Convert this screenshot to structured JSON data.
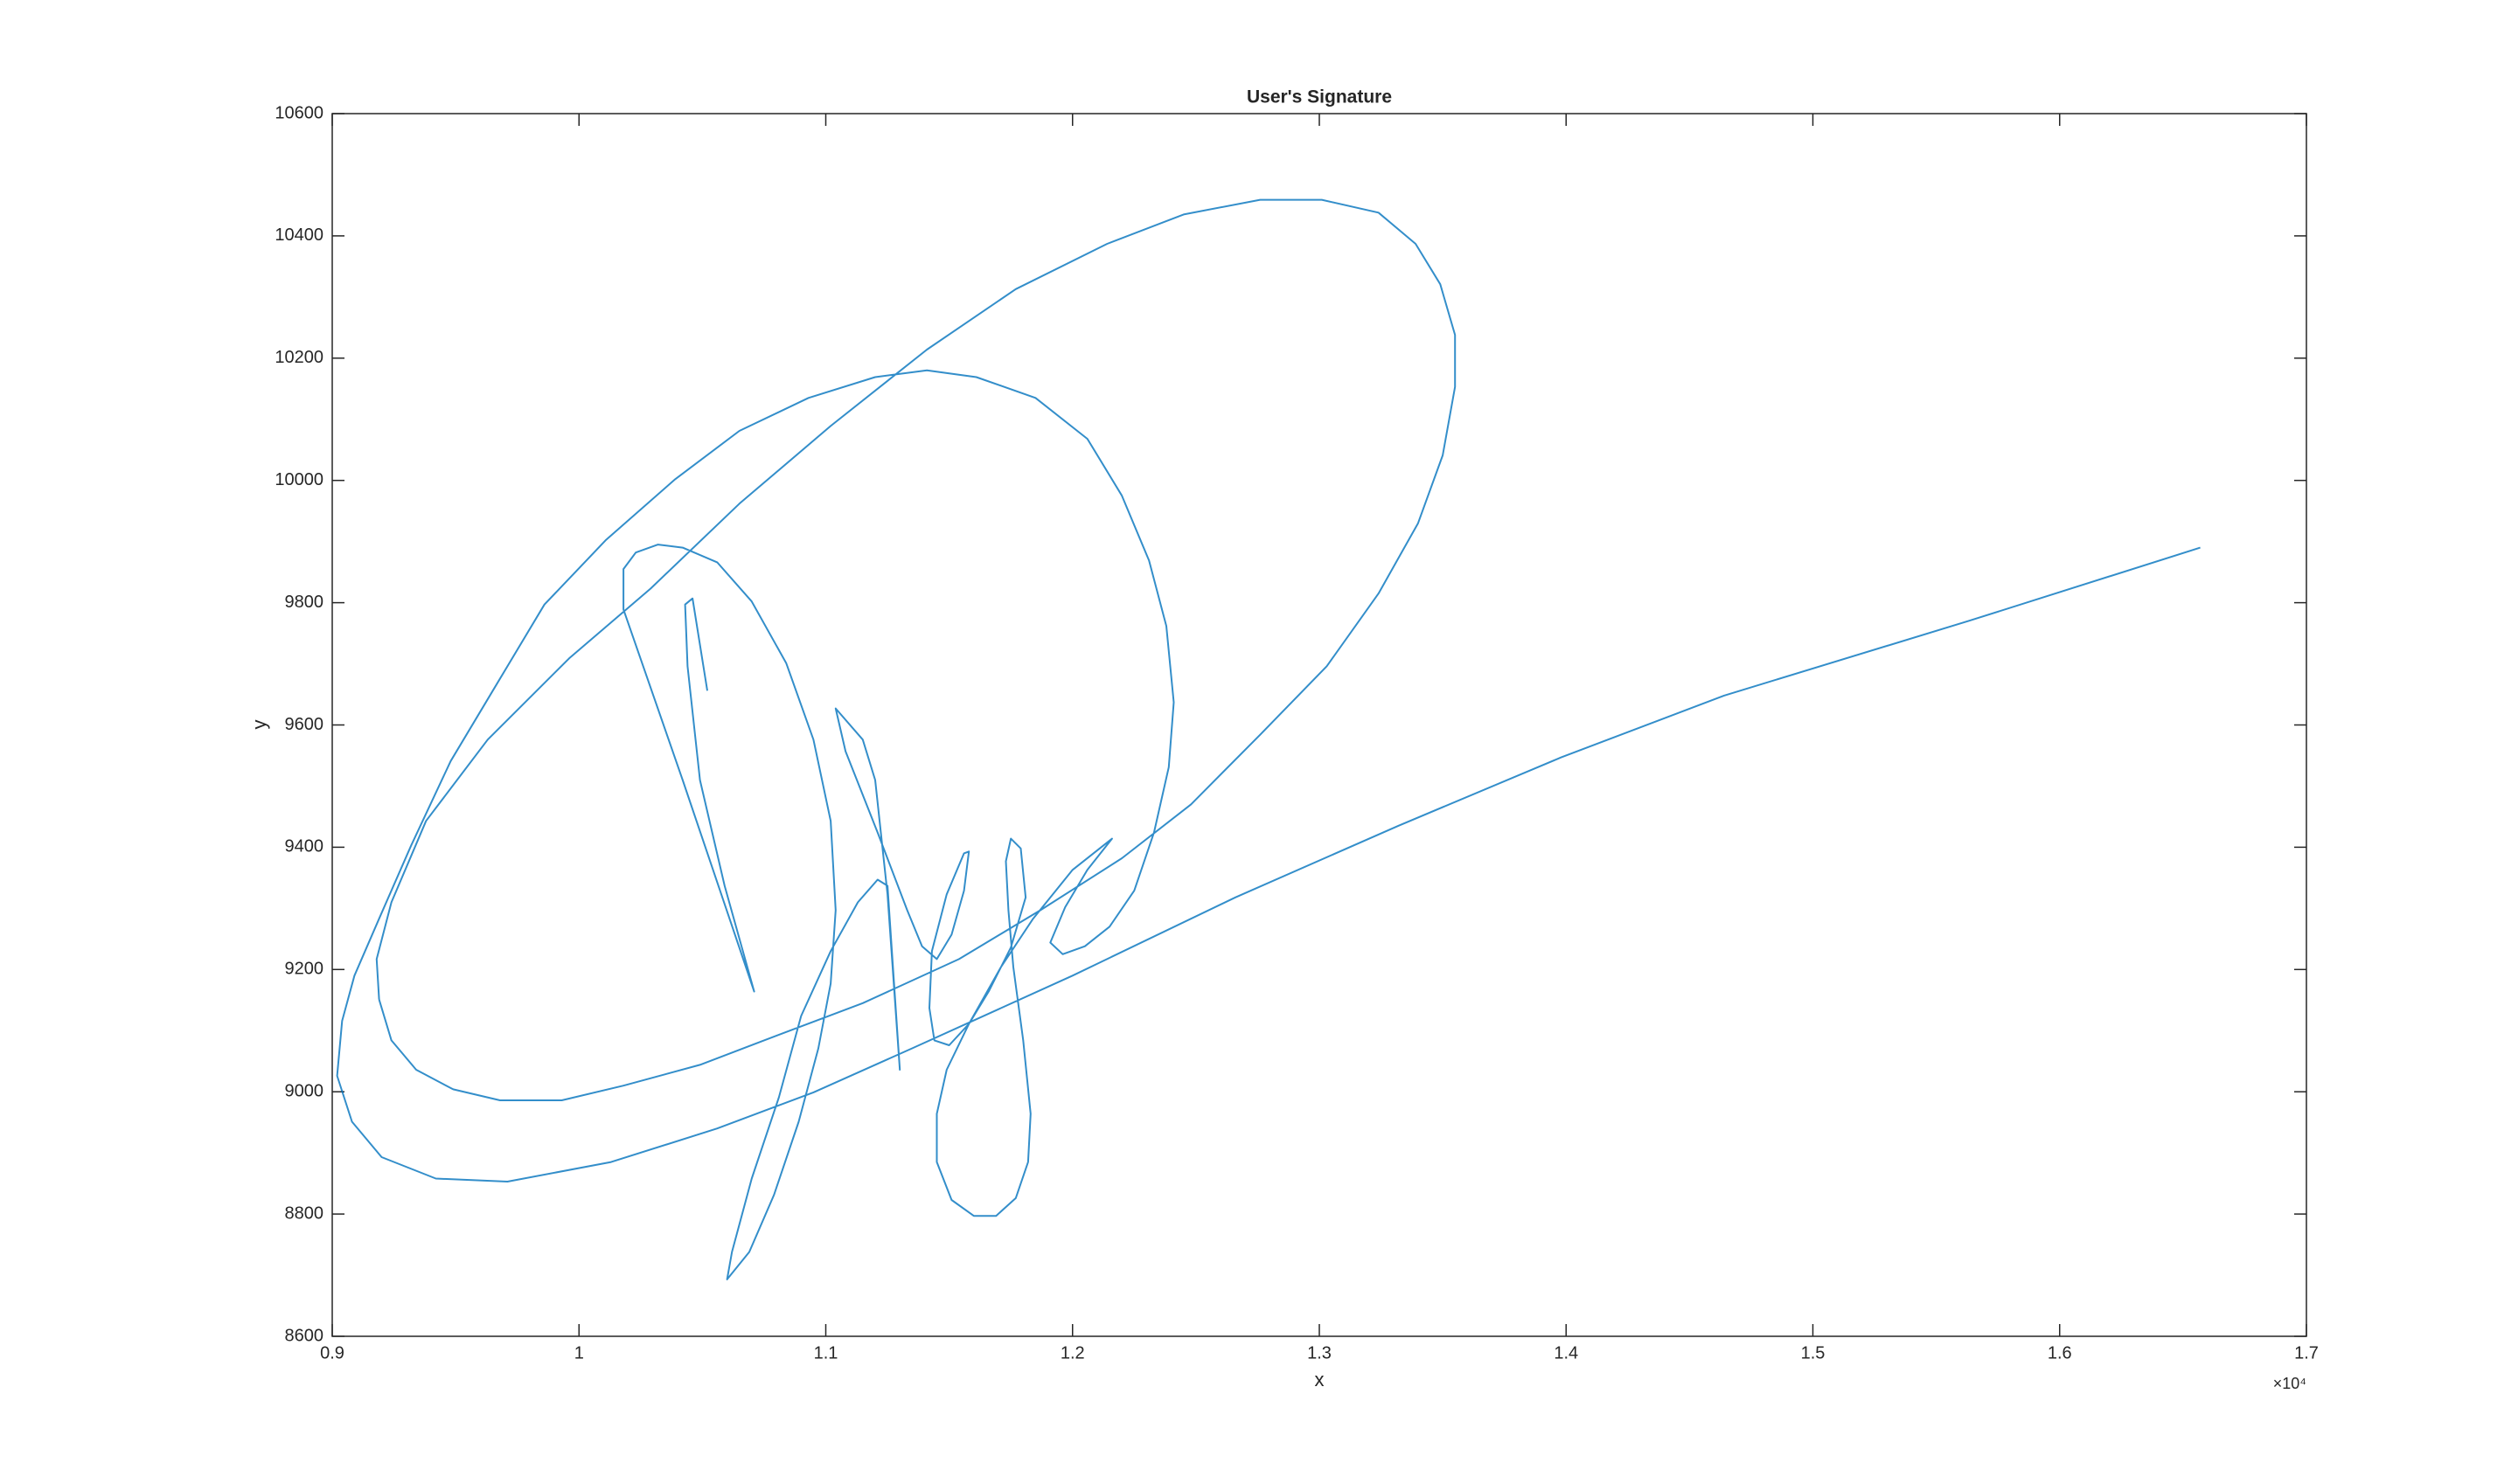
{
  "chart_data": {
    "type": "line",
    "title": "User's Signature",
    "x_label": "x",
    "y_label": "y",
    "x_exponent": "×10⁴",
    "color": "#0072bd",
    "xlim": [
      0.9,
      1.7
    ],
    "xticks": [
      0.9,
      1,
      1.1,
      1.2,
      1.3,
      1.4,
      1.5,
      1.6,
      1.7
    ],
    "ylim": [
      8600,
      10600
    ],
    "yticks": [
      8600,
      8800,
      9000,
      9200,
      9400,
      9600,
      9800,
      10000,
      10200,
      10400,
      10600
    ],
    "x": [
      1.052,
      1.046,
      1.043,
      1.044,
      1.049,
      1.059,
      1.071,
      1.042,
      1.018,
      1.018,
      1.023,
      1.032,
      1.042,
      1.056,
      1.07,
      1.084,
      1.095,
      1.102,
      1.104,
      1.102,
      1.097,
      1.089,
      1.079,
      1.069,
      1.06,
      1.062,
      1.07,
      1.081,
      1.09,
      1.102,
      1.113,
      1.121,
      1.125,
      1.13,
      1.125,
      1.12,
      1.115,
      1.104,
      1.108,
      1.121,
      1.133,
      1.139,
      1.145,
      1.151,
      1.156,
      1.158,
      1.156,
      1.149,
      1.143,
      1.142,
      1.144,
      1.15,
      1.158,
      1.166,
      1.175,
      1.181,
      1.179,
      1.175,
      1.173,
      1.174,
      1.176,
      1.18,
      1.183,
      1.182,
      1.177,
      1.169,
      1.16,
      1.151,
      1.145,
      1.145,
      1.149,
      1.158,
      1.171,
      1.184,
      1.2,
      1.216,
      1.206,
      1.197,
      1.191,
      1.196,
      1.205,
      1.215,
      1.225,
      1.233,
      1.239,
      1.241,
      1.238,
      1.231,
      1.22,
      1.206,
      1.185,
      1.161,
      1.141,
      1.12,
      1.093,
      1.065,
      1.039,
      1.011,
      0.986,
      0.967,
      0.948,
      0.932,
      0.919,
      0.909,
      0.904,
      0.902,
      0.908,
      0.92,
      0.942,
      0.971,
      1.013,
      1.056,
      1.095,
      1.135,
      1.2,
      1.266,
      1.332,
      1.398,
      1.464,
      1.563,
      1.657,
      null,
      0.919,
      0.918,
      0.924,
      0.938,
      0.963,
      0.996,
      1.029,
      1.065,
      1.102,
      1.141,
      1.177,
      1.214,
      1.245,
      1.276,
      1.301,
      1.324,
      1.339,
      1.349,
      1.355,
      1.355,
      1.35,
      1.34,
      1.324,
      1.303,
      1.276,
      1.248,
      1.22,
      1.187,
      1.154,
      1.115,
      1.075,
      1.049,
      1.018,
      0.993,
      0.968,
      0.949,
      0.934,
      0.924,
      0.919
    ],
    "values": [
      9656,
      9807,
      9797,
      9696,
      9510,
      9337,
      9164,
      9510,
      9789,
      9855,
      9882,
      9895,
      9890,
      9866,
      9802,
      9701,
      9576,
      9443,
      9297,
      9177,
      9071,
      8951,
      8831,
      8738,
      8693,
      8738,
      8858,
      8991,
      9124,
      9230,
      9310,
      9347,
      9337,
      9036,
      9323,
      9510,
      9576,
      9627,
      9557,
      9424,
      9297,
      9238,
      9217,
      9257,
      9329,
      9393,
      9390,
      9323,
      9230,
      9137,
      9084,
      9076,
      9111,
      9164,
      9236,
      9318,
      9398,
      9414,
      9377,
      9297,
      9204,
      9084,
      8964,
      8885,
      8826,
      8797,
      8797,
      8823,
      8885,
      8964,
      9036,
      9111,
      9204,
      9283,
      9363,
      9414,
      9363,
      9302,
      9244,
      9225,
      9238,
      9270,
      9329,
      9424,
      9531,
      9637,
      9762,
      9869,
      9975,
      10068,
      10135,
      10169,
      10180,
      10169,
      10135,
      10081,
      10002,
      9903,
      9797,
      9669,
      9541,
      9403,
      9283,
      9190,
      9116,
      9026,
      8951,
      8893,
      8858,
      8853,
      8885,
      8940,
      8999,
      9071,
      9190,
      9318,
      9435,
      9547,
      9648,
      9770,
      9890,
      null,
      9151,
      9217,
      9310,
      9443,
      9576,
      9709,
      9823,
      9962,
      10089,
      10214,
      10313,
      10387,
      10435,
      10459,
      10459,
      10438,
      10387,
      10321,
      10238,
      10153,
      10041,
      9930,
      9815,
      9696,
      9584,
      9470,
      9382,
      9297,
      9217,
      9145,
      9084,
      9044,
      9010,
      8986,
      8986,
      9004,
      9036,
      9084,
      9151
    ]
  }
}
